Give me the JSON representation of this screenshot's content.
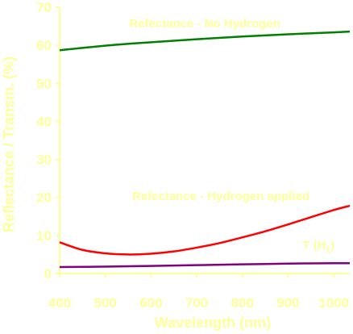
{
  "chart_data": {
    "type": "line",
    "xlabel": "Wavelength (nm)",
    "ylabel": "Reflectance / Transm. (%)",
    "xlim": [
      400,
      1035
    ],
    "ylim": [
      0,
      70
    ],
    "xticks": [
      400,
      500,
      600,
      700,
      800,
      900,
      1000
    ],
    "yticks": [
      0,
      10,
      20,
      30,
      40,
      50,
      60,
      70
    ],
    "grid": false,
    "series": [
      {
        "name": "Refectance - No Hydrogen",
        "color": "#008000",
        "x": [
          400,
          500,
          600,
          700,
          800,
          900,
          1000,
          1035
        ],
        "y": [
          58.7,
          59.9,
          60.8,
          61.6,
          62.3,
          62.9,
          63.4,
          63.6
        ]
      },
      {
        "name": "Refectance - Hydrogen applied",
        "color": "#ff0000",
        "x": [
          400,
          450,
          500,
          550,
          600,
          650,
          700,
          750,
          800,
          850,
          900,
          950,
          1000,
          1035
        ],
        "y": [
          8.2,
          6.2,
          5.3,
          5.0,
          5.2,
          5.8,
          6.8,
          8.0,
          9.5,
          11.1,
          12.9,
          14.8,
          16.7,
          17.8
        ]
      },
      {
        "name": "T (H2)",
        "color": "#800080",
        "x": [
          400,
          500,
          600,
          700,
          800,
          900,
          1000,
          1035
        ],
        "y": [
          1.7,
          1.8,
          2.0,
          2.2,
          2.4,
          2.6,
          2.7,
          2.7
        ]
      }
    ],
    "annotations": [
      {
        "text": "Refectance - No Hydrogen",
        "series": 0
      },
      {
        "text": "Refectance - Hydrogen applied",
        "series": 1
      },
      {
        "text": "T (H",
        "sub": "2",
        "close": ")",
        "series": 2
      }
    ],
    "text_color": "#ffff99",
    "axis_color": "#ffff99"
  }
}
